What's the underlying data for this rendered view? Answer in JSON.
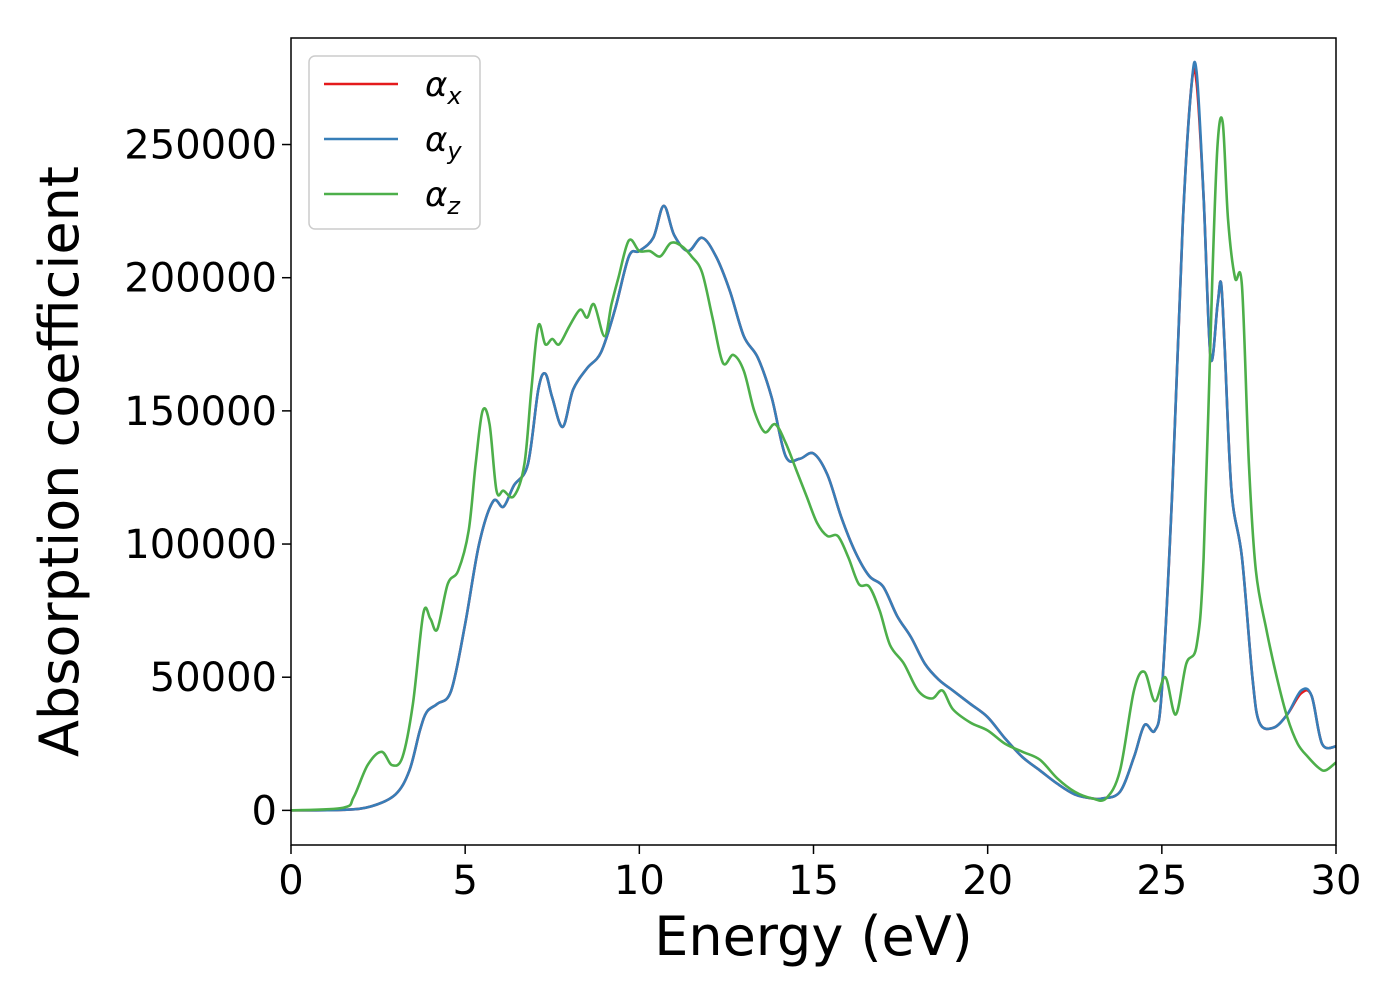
{
  "chart_data": {
    "type": "line",
    "xlabel": "Energy (eV)",
    "ylabel": "Absorption coefficient",
    "xlim": [
      0,
      30
    ],
    "ylim": [
      -13000,
      290000
    ],
    "xticks": [
      0,
      5,
      10,
      15,
      20,
      25,
      30
    ],
    "yticks": [
      0,
      50000,
      100000,
      150000,
      200000,
      250000
    ],
    "grid": false,
    "legend_position": "top-left",
    "series": [
      {
        "name": "α",
        "subscript": "x",
        "color": "#e41a1c",
        "x": [
          0,
          1.5,
          2.3,
          3.0,
          3.4,
          3.7,
          3.9,
          4.2,
          4.6,
          5.0,
          5.4,
          5.8,
          6.1,
          6.4,
          6.8,
          7.1,
          7.3,
          7.5,
          7.8,
          8.1,
          8.5,
          8.9,
          9.3,
          9.7,
          10.0,
          10.4,
          10.7,
          11.0,
          11.4,
          11.8,
          12.2,
          12.6,
          13.0,
          13.4,
          13.8,
          14.2,
          14.6,
          15.0,
          15.4,
          15.8,
          16.2,
          16.6,
          17.0,
          17.4,
          17.8,
          18.2,
          18.6,
          19.0,
          19.5,
          20.0,
          20.5,
          21.0,
          21.5,
          22.0,
          22.5,
          23.0,
          23.3,
          23.8,
          24.2,
          24.5,
          24.8,
          25.0,
          25.3,
          25.6,
          25.85,
          26.0,
          26.2,
          26.4,
          26.6,
          26.7,
          26.8,
          27.0,
          27.3,
          27.6,
          27.8,
          28.2,
          28.6,
          29.0,
          29.3,
          29.6,
          30.0
        ],
        "y": [
          0,
          200,
          1500,
          6000,
          15000,
          30000,
          37000,
          40000,
          45000,
          70000,
          100000,
          116000,
          114000,
          122000,
          130000,
          158000,
          164000,
          155000,
          144000,
          158000,
          166000,
          172000,
          188000,
          208000,
          210000,
          215000,
          227000,
          216000,
          210000,
          215000,
          208000,
          195000,
          178000,
          170000,
          155000,
          133000,
          132000,
          134000,
          126000,
          110000,
          97000,
          88000,
          84000,
          73000,
          65000,
          55000,
          49000,
          45000,
          40000,
          35000,
          27000,
          20000,
          15000,
          10000,
          6000,
          4500,
          4500,
          7000,
          20000,
          32000,
          30000,
          45000,
          120000,
          220000,
          272000,
          273000,
          230000,
          170000,
          190000,
          198000,
          175000,
          120000,
          95000,
          50000,
          33000,
          31000,
          36000,
          44000,
          43000,
          25000,
          24000
        ]
      },
      {
        "name": "α",
        "subscript": "y",
        "color": "#377eb8",
        "x": [
          0,
          1.5,
          2.3,
          3.0,
          3.4,
          3.7,
          3.9,
          4.2,
          4.6,
          5.0,
          5.4,
          5.8,
          6.1,
          6.4,
          6.8,
          7.1,
          7.3,
          7.5,
          7.8,
          8.1,
          8.5,
          8.9,
          9.3,
          9.7,
          10.0,
          10.4,
          10.7,
          11.0,
          11.4,
          11.8,
          12.2,
          12.6,
          13.0,
          13.4,
          13.8,
          14.2,
          14.6,
          15.0,
          15.4,
          15.8,
          16.2,
          16.6,
          17.0,
          17.4,
          17.8,
          18.2,
          18.6,
          19.0,
          19.5,
          20.0,
          20.5,
          21.0,
          21.5,
          22.0,
          22.5,
          23.0,
          23.3,
          23.8,
          24.2,
          24.5,
          24.8,
          25.0,
          25.3,
          25.6,
          25.85,
          26.0,
          26.2,
          26.4,
          26.6,
          26.7,
          26.8,
          27.0,
          27.3,
          27.6,
          27.8,
          28.2,
          28.6,
          29.0,
          29.3,
          29.6,
          30.0
        ],
        "y": [
          0,
          200,
          1500,
          6000,
          15000,
          30000,
          37000,
          40000,
          45000,
          70000,
          100000,
          116000,
          114000,
          122000,
          130000,
          158000,
          164000,
          155000,
          144000,
          158000,
          166000,
          172000,
          188000,
          208000,
          210000,
          215000,
          227000,
          216000,
          210000,
          215000,
          208000,
          195000,
          178000,
          170000,
          155000,
          133000,
          132000,
          134000,
          126000,
          110000,
          97000,
          88000,
          84000,
          73000,
          65000,
          55000,
          49000,
          45000,
          40000,
          35000,
          27000,
          20000,
          15000,
          10000,
          6000,
          4500,
          4500,
          7000,
          20000,
          32000,
          30000,
          45000,
          120000,
          220000,
          272000,
          277000,
          230000,
          170000,
          190000,
          198000,
          175000,
          120000,
          95000,
          50000,
          33000,
          31000,
          36000,
          45000,
          43000,
          25000,
          24000
        ]
      },
      {
        "name": "α",
        "subscript": "z",
        "color": "#4daf4a",
        "x": [
          0,
          1.5,
          1.8,
          2.2,
          2.6,
          2.9,
          3.2,
          3.5,
          3.8,
          4.0,
          4.2,
          4.5,
          4.8,
          5.1,
          5.3,
          5.5,
          5.7,
          5.9,
          6.1,
          6.4,
          6.7,
          6.9,
          7.1,
          7.3,
          7.5,
          7.7,
          8.0,
          8.3,
          8.5,
          8.7,
          9.0,
          9.2,
          9.4,
          9.7,
          10.0,
          10.3,
          10.6,
          10.9,
          11.2,
          11.5,
          11.8,
          12.1,
          12.4,
          12.7,
          13.0,
          13.3,
          13.6,
          13.9,
          14.2,
          14.5,
          14.8,
          15.1,
          15.4,
          15.7,
          16.0,
          16.3,
          16.6,
          16.9,
          17.2,
          17.6,
          18.0,
          18.4,
          18.7,
          19.0,
          19.5,
          20.0,
          20.5,
          21.0,
          21.5,
          22.0,
          22.5,
          23.0,
          23.4,
          23.8,
          24.2,
          24.5,
          24.8,
          25.1,
          25.4,
          25.7,
          26.0,
          26.2,
          26.45,
          26.6,
          26.75,
          26.9,
          27.1,
          27.3,
          27.5,
          27.7,
          28.0,
          28.3,
          28.6,
          28.9,
          29.2,
          29.5,
          29.7,
          30.0
        ],
        "y": [
          0,
          1000,
          5000,
          17000,
          22000,
          17000,
          20000,
          40000,
          74000,
          72000,
          68000,
          85000,
          90000,
          105000,
          130000,
          150000,
          145000,
          120000,
          120000,
          118000,
          130000,
          158000,
          182000,
          175000,
          177000,
          175000,
          182000,
          188000,
          185000,
          190000,
          178000,
          190000,
          200000,
          214000,
          210000,
          210000,
          208000,
          213000,
          212000,
          208000,
          202000,
          185000,
          168000,
          171000,
          165000,
          150000,
          142000,
          145000,
          138000,
          128000,
          118000,
          108000,
          103000,
          103000,
          95000,
          85000,
          84000,
          75000,
          62000,
          55000,
          45000,
          42000,
          45000,
          38000,
          33000,
          30000,
          25000,
          22000,
          19000,
          12000,
          7000,
          4500,
          4500,
          15000,
          45000,
          52000,
          41000,
          50000,
          36000,
          55000,
          62000,
          95000,
          200000,
          250000,
          258000,
          222000,
          200000,
          197000,
          130000,
          90000,
          68000,
          50000,
          35000,
          25000,
          20000,
          16000,
          15000,
          18000
        ]
      }
    ]
  }
}
